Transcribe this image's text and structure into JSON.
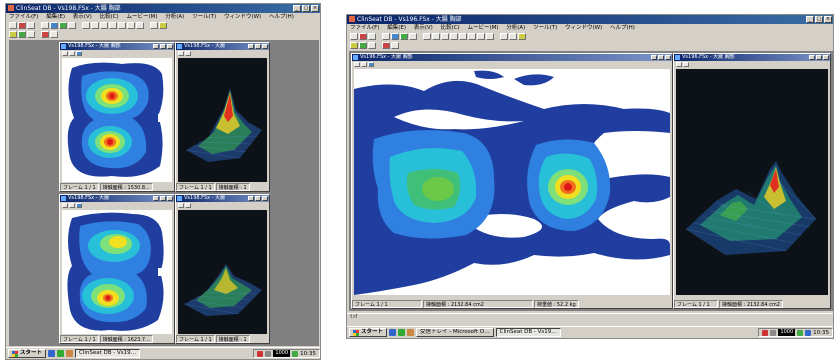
{
  "screens": [
    {
      "window_title": "ClinSeat DB - Vs198.FSx - 大腸 胸部",
      "menu": [
        "ファイル(F)",
        "編集(E)",
        "表示(V)",
        "比較(C)",
        "ムービー(M)",
        "分析(A)",
        "ツール(T)",
        "ウィンドウ(W)",
        "ヘルプ(H)"
      ],
      "subwindows": [
        {
          "title": "Vs198.FSx - 大腸 胸部",
          "status": [
            "フレーム 1 / 1",
            "接触面積 : 1530.8…"
          ]
        },
        {
          "title": "Vs198.FSx - 大腸",
          "status": [
            "フレーム 1 / 1",
            "接触面積 : 1"
          ]
        },
        {
          "title": "Vs198.FSx - 大腸",
          "status": [
            "フレーム 1 / 1",
            "接触面積 : 1623.7…"
          ]
        },
        {
          "title": "Vs198.FSx - 大腸",
          "status": [
            "フレーム 1 / 1",
            "接触面積 : 1"
          ]
        }
      ],
      "taskbar": {
        "start": "スタート",
        "items": [
          "ClinSeat DB - Vs19…"
        ],
        "ime": "1000",
        "clock": "10:35"
      }
    },
    {
      "window_title": "ClinSeat DB - Vs196.FSx - 大腸 胸部",
      "menu": [
        "ファイル(F)",
        "編集(E)",
        "表示(V)",
        "比較(C)",
        "ムービー(M)",
        "分析(A)",
        "ツール(T)",
        "ウィンドウ(W)",
        "ヘルプ(H)"
      ],
      "subwindows": [
        {
          "title": "Vs196.FSx - 大腸 胸部",
          "status": [
            "フレーム 1 / 1",
            "接触面積 : 2132.84 cm2",
            "荷重値 : 52.2 kg"
          ]
        },
        {
          "title": "Vs196.FSx - 大腸 胸部",
          "status": [
            "フレーム 1 / 1",
            "接触面積 : 2132.84 cm2"
          ]
        }
      ],
      "linkbar": "ﾘﾝｸ",
      "taskbar": {
        "start": "スタート",
        "items": [
          "受信トレイ - Microsoft O…",
          "ClinSeat DB - Vs19…"
        ],
        "ime": "1000",
        "clock": "10:35"
      }
    }
  ]
}
